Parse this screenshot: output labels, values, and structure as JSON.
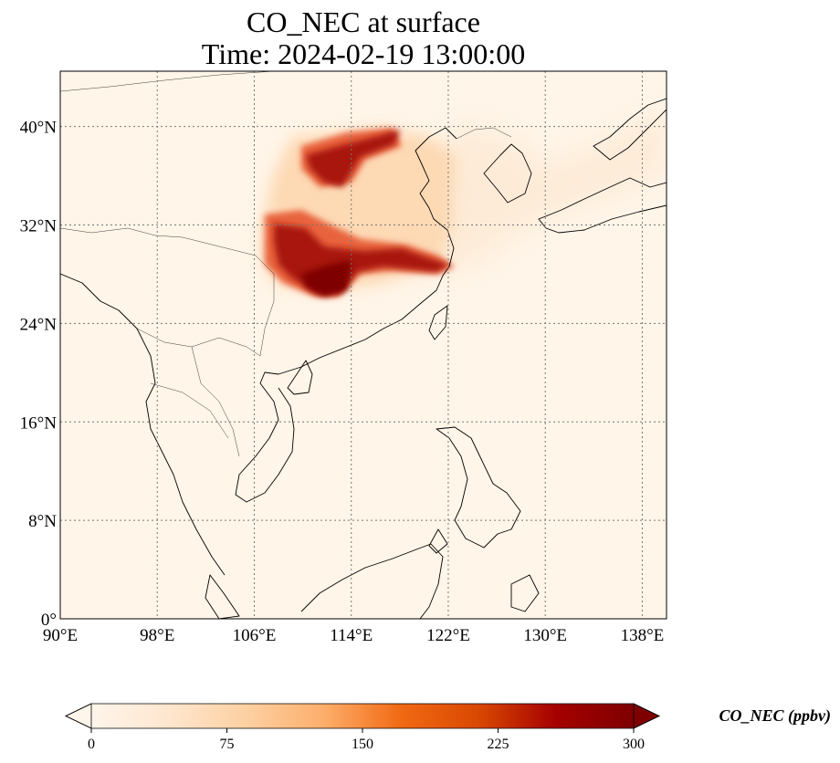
{
  "title": {
    "line1": "CO_NEC at surface",
    "line2": "Time: 2024-02-19 13:00:00"
  },
  "map": {
    "lon_range": [
      90,
      140
    ],
    "lat_range": [
      0,
      44.5
    ],
    "lon_ticks": [
      {
        "value": 90,
        "label": "90°E"
      },
      {
        "value": 98,
        "label": "98°E"
      },
      {
        "value": 106,
        "label": "106°E"
      },
      {
        "value": 114,
        "label": "114°E"
      },
      {
        "value": 122,
        "label": "122°E"
      },
      {
        "value": 130,
        "label": "130°E"
      },
      {
        "value": 138,
        "label": "138°E"
      }
    ],
    "lat_ticks": [
      {
        "value": 0,
        "label": "0°"
      },
      {
        "value": 8,
        "label": "8°N"
      },
      {
        "value": 16,
        "label": "16°N"
      },
      {
        "value": 24,
        "label": "24°N"
      },
      {
        "value": 32,
        "label": "32°N"
      },
      {
        "value": 40,
        "label": "40°N"
      }
    ],
    "gridlines": true,
    "background_color": "#fff5e8"
  },
  "colorbar": {
    "label": "CO_NEC (ppbv)",
    "min": 0,
    "max": 300,
    "extend": "both",
    "ticks": [
      {
        "value": 0,
        "label": "0"
      },
      {
        "value": 75,
        "label": "75"
      },
      {
        "value": 150,
        "label": "150"
      },
      {
        "value": 225,
        "label": "225"
      },
      {
        "value": 300,
        "label": "300"
      }
    ],
    "colormap": [
      "#fff5eb",
      "#fee6ce",
      "#fdd0a2",
      "#fdae6b",
      "#f16913",
      "#d94801",
      "#a50000",
      "#7f0000"
    ]
  }
}
